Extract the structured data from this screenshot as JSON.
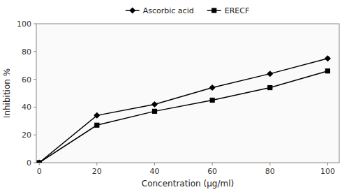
{
  "chart_data": {
    "type": "line",
    "x_label": "Concentration (μg/ml)",
    "y_label": "Inhibition %",
    "x": [
      0,
      20,
      40,
      60,
      80,
      100
    ],
    "series": [
      {
        "name": "Ascorbic acid",
        "color": "#000000",
        "marker": "diamond",
        "line_style": "solid",
        "values": [
          0,
          34,
          42,
          54,
          64,
          75
        ],
        "errors": [
          0,
          0.8,
          0.8,
          0.8,
          0.8,
          0.8
        ]
      },
      {
        "name": "ERECF",
        "color": "#000000",
        "marker": "square",
        "line_style": "solid",
        "values": [
          0,
          27,
          37,
          45,
          54,
          66
        ],
        "errors": [
          0,
          0.8,
          0.8,
          1.2,
          0.8,
          0.8
        ]
      }
    ],
    "xlim": [
      -1,
      104
    ],
    "ylim": [
      0,
      100
    ],
    "xticks": [
      0,
      20,
      40,
      60,
      80,
      100
    ],
    "yticks": [
      0,
      20,
      40,
      60,
      80,
      100
    ],
    "grid": false,
    "legend": "top"
  }
}
